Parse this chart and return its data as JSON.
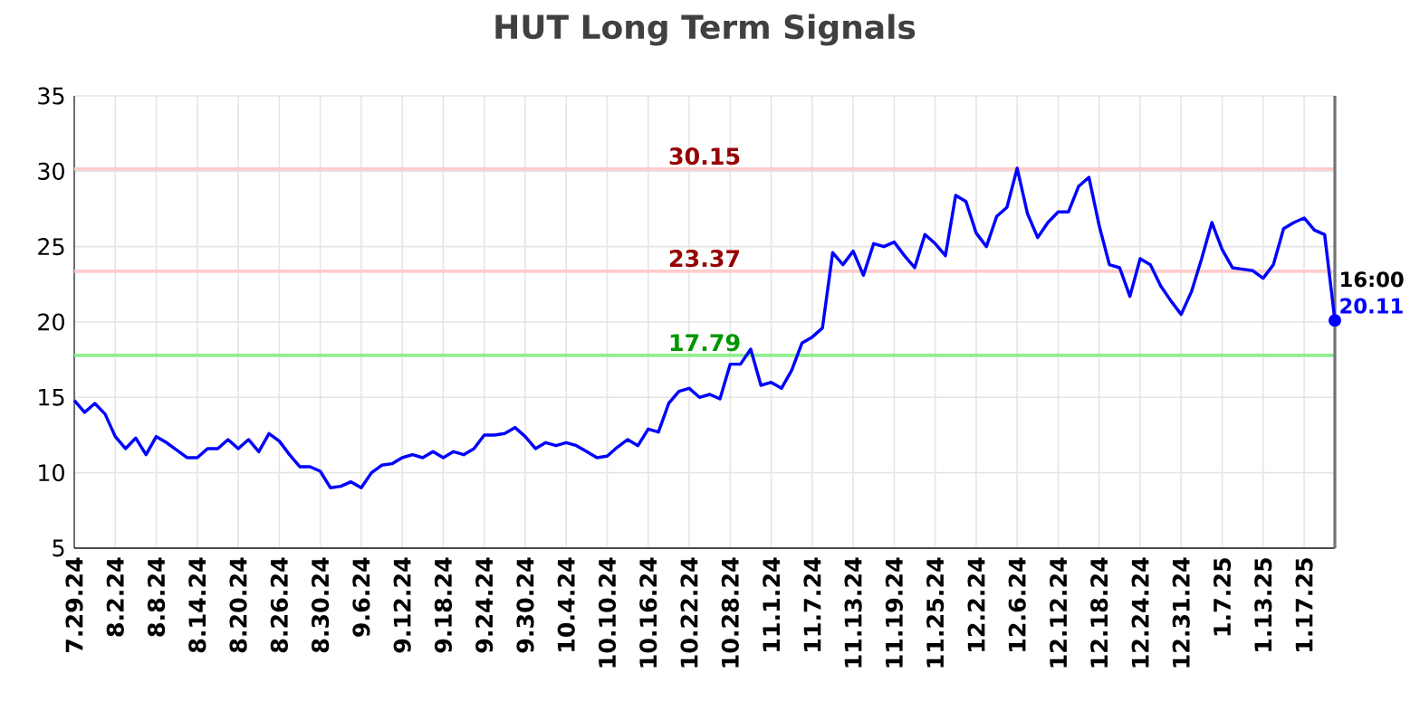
{
  "chart_data": {
    "type": "line",
    "title": "HUT Long Term Signals",
    "categories": [
      "7.29.24",
      null,
      null,
      null,
      "8.2.24",
      null,
      null,
      null,
      "8.8.24",
      null,
      null,
      null,
      "8.14.24",
      null,
      null,
      null,
      "8.20.24",
      null,
      null,
      null,
      "8.26.24",
      null,
      null,
      null,
      "8.30.24",
      null,
      null,
      null,
      "9.6.24",
      null,
      null,
      null,
      "9.12.24",
      null,
      null,
      null,
      "9.18.24",
      null,
      null,
      null,
      "9.24.24",
      null,
      null,
      null,
      "9.30.24",
      null,
      null,
      null,
      "10.4.24",
      null,
      null,
      null,
      "10.10.24",
      null,
      null,
      null,
      "10.16.24",
      null,
      null,
      null,
      "10.22.24",
      null,
      null,
      null,
      "10.28.24",
      null,
      null,
      null,
      "11.1.24",
      null,
      null,
      null,
      "11.7.24",
      null,
      null,
      null,
      "11.13.24",
      null,
      null,
      null,
      "11.19.24",
      null,
      null,
      null,
      "11.25.24",
      null,
      null,
      null,
      "12.2.24",
      null,
      null,
      null,
      "12.6.24",
      null,
      null,
      null,
      "12.12.24",
      null,
      null,
      null,
      "12.18.24",
      null,
      null,
      null,
      "12.24.24",
      null,
      null,
      null,
      "12.31.24",
      null,
      null,
      null,
      "1.7.25",
      null,
      null,
      null,
      "1.13.25",
      null,
      null,
      null,
      "1.17.25",
      null,
      null,
      null
    ],
    "series": [
      {
        "color": "#0000ff",
        "values": [
          14.8,
          14.0,
          14.6,
          13.9,
          12.4,
          11.6,
          12.3,
          11.2,
          12.4,
          12.0,
          11.5,
          11.0,
          11.0,
          11.6,
          11.6,
          12.2,
          11.6,
          12.2,
          11.4,
          12.6,
          12.1,
          11.2,
          10.4,
          10.4,
          10.1,
          9.0,
          9.1,
          9.4,
          9.0,
          10.0,
          10.5,
          10.6,
          11.0,
          11.2,
          11.0,
          11.4,
          11.0,
          11.4,
          11.2,
          11.6,
          12.5,
          12.5,
          12.6,
          13.0,
          12.4,
          11.6,
          12.0,
          11.8,
          12.0,
          11.8,
          11.4,
          11.0,
          11.1,
          11.7,
          12.2,
          11.8,
          12.9,
          12.7,
          14.6,
          15.4,
          15.6,
          15.0,
          15.2,
          14.9,
          17.2,
          17.2,
          18.2,
          15.8,
          16.0,
          15.6,
          16.8,
          18.6,
          19.0,
          19.6,
          24.6,
          23.8,
          24.7,
          23.1,
          25.2,
          25.0,
          25.3,
          24.4,
          23.6,
          25.8,
          25.2,
          24.4,
          28.4,
          28.0,
          25.9,
          25.0,
          27.0,
          27.6,
          30.2,
          27.2,
          25.6,
          26.6,
          27.3,
          27.3,
          29.0,
          29.6,
          26.4,
          23.8,
          23.6,
          21.7,
          24.2,
          23.8,
          22.4,
          21.4,
          20.5,
          22.0,
          24.2,
          26.6,
          24.8,
          23.6,
          23.5,
          23.4,
          22.9,
          23.8,
          26.2,
          26.6,
          26.9,
          26.1,
          25.8,
          20.11
        ]
      }
    ],
    "ylim": [
      5,
      35
    ],
    "yticks": [
      5,
      10,
      15,
      20,
      25,
      30,
      35
    ],
    "grid": true,
    "line_style": "solid",
    "ref_lines": [
      {
        "axis": "y",
        "value": 30.15,
        "label": "30.15",
        "color": "#ffcccc"
      },
      {
        "axis": "y",
        "value": 23.37,
        "label": "23.37",
        "color": "#ffcccc"
      },
      {
        "axis": "y",
        "value": 17.79,
        "label": "17.79",
        "color": "#90ee90"
      }
    ],
    "annotations": [
      "16:00",
      "20.11"
    ]
  }
}
